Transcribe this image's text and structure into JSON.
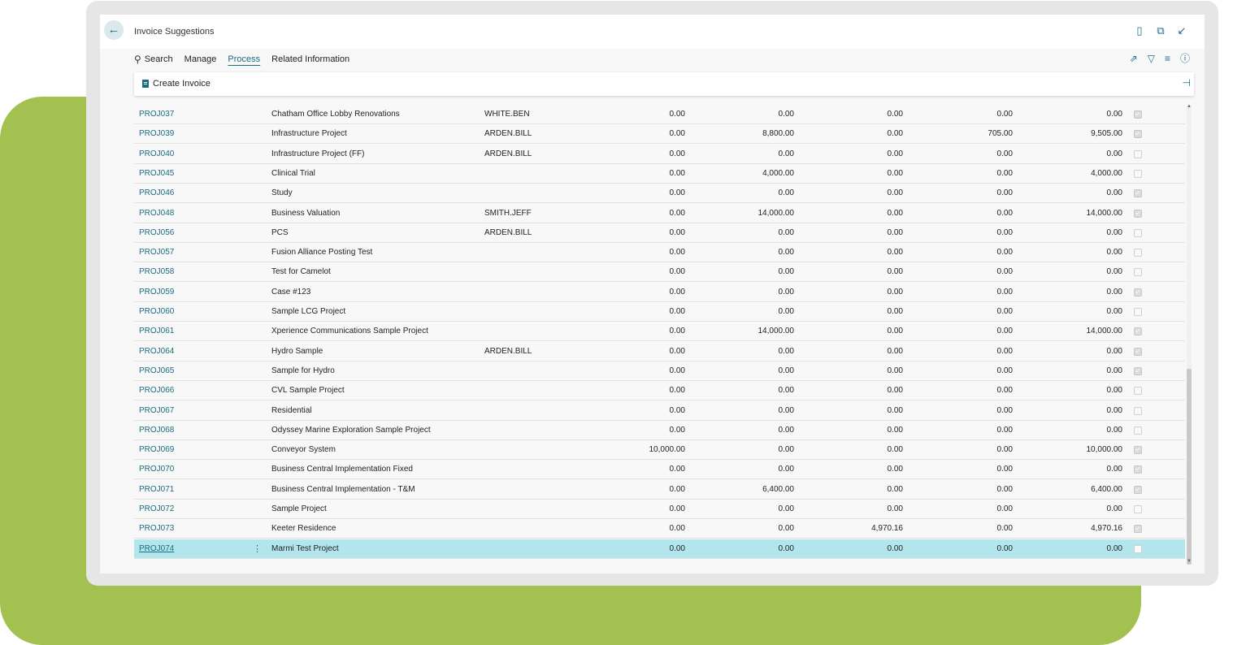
{
  "page": {
    "title": "Invoice Suggestions",
    "back_icon": "arrow-left-icon"
  },
  "header_icons": [
    "bookmark-icon",
    "open-in-new-window-icon",
    "collapse-icon"
  ],
  "actionbar": {
    "search": "Search",
    "manage": "Manage",
    "process": "Process",
    "related": "Related Information"
  },
  "toolbar_icons": [
    "share-icon",
    "filter-icon",
    "list-view-icon",
    "info-icon"
  ],
  "subbar": {
    "create_invoice": "Create Invoice"
  },
  "colors": {
    "accent": "#1b6c80",
    "selected_row": "#b3e6ec",
    "green_background": "#a3c150"
  },
  "rows": [
    {
      "no": "PROJ037",
      "desc": "Chatham Office Lobby Renovations",
      "mgr": "WHITE.BEN",
      "a": "0.00",
      "b": "0.00",
      "c": "0.00",
      "d": "0.00",
      "e": "0.00",
      "checked": true
    },
    {
      "no": "PROJ039",
      "desc": "Infrastructure Project",
      "mgr": "ARDEN.BILL",
      "a": "0.00",
      "b": "8,800.00",
      "c": "0.00",
      "d": "705.00",
      "e": "9,505.00",
      "checked": true
    },
    {
      "no": "PROJ040",
      "desc": "Infrastructure Project (FF)",
      "mgr": "ARDEN.BILL",
      "a": "0.00",
      "b": "0.00",
      "c": "0.00",
      "d": "0.00",
      "e": "0.00",
      "checked": false
    },
    {
      "no": "PROJ045",
      "desc": "Clinical Trial",
      "mgr": "",
      "a": "0.00",
      "b": "4,000.00",
      "c": "0.00",
      "d": "0.00",
      "e": "4,000.00",
      "checked": false
    },
    {
      "no": "PROJ046",
      "desc": "Study",
      "mgr": "",
      "a": "0.00",
      "b": "0.00",
      "c": "0.00",
      "d": "0.00",
      "e": "0.00",
      "checked": true
    },
    {
      "no": "PROJ048",
      "desc": "Business Valuation",
      "mgr": "SMITH.JEFF",
      "a": "0.00",
      "b": "14,000.00",
      "c": "0.00",
      "d": "0.00",
      "e": "14,000.00",
      "checked": true
    },
    {
      "no": "PROJ056",
      "desc": "PCS",
      "mgr": "ARDEN.BILL",
      "a": "0.00",
      "b": "0.00",
      "c": "0.00",
      "d": "0.00",
      "e": "0.00",
      "checked": false
    },
    {
      "no": "PROJ057",
      "desc": "Fusion Alliance Posting Test",
      "mgr": "",
      "a": "0.00",
      "b": "0.00",
      "c": "0.00",
      "d": "0.00",
      "e": "0.00",
      "checked": false
    },
    {
      "no": "PROJ058",
      "desc": "Test for Camelot",
      "mgr": "",
      "a": "0.00",
      "b": "0.00",
      "c": "0.00",
      "d": "0.00",
      "e": "0.00",
      "checked": false
    },
    {
      "no": "PROJ059",
      "desc": "Case #123",
      "mgr": "",
      "a": "0.00",
      "b": "0.00",
      "c": "0.00",
      "d": "0.00",
      "e": "0.00",
      "checked": true
    },
    {
      "no": "PROJ060",
      "desc": "Sample LCG Project",
      "mgr": "",
      "a": "0.00",
      "b": "0.00",
      "c": "0.00",
      "d": "0.00",
      "e": "0.00",
      "checked": false
    },
    {
      "no": "PROJ061",
      "desc": "Xperience Communications Sample Project",
      "mgr": "",
      "a": "0.00",
      "b": "14,000.00",
      "c": "0.00",
      "d": "0.00",
      "e": "14,000.00",
      "checked": true
    },
    {
      "no": "PROJ064",
      "desc": "Hydro Sample",
      "mgr": "ARDEN.BILL",
      "a": "0.00",
      "b": "0.00",
      "c": "0.00",
      "d": "0.00",
      "e": "0.00",
      "checked": true
    },
    {
      "no": "PROJ065",
      "desc": "Sample for Hydro",
      "mgr": "",
      "a": "0.00",
      "b": "0.00",
      "c": "0.00",
      "d": "0.00",
      "e": "0.00",
      "checked": true
    },
    {
      "no": "PROJ066",
      "desc": "CVL Sample Project",
      "mgr": "",
      "a": "0.00",
      "b": "0.00",
      "c": "0.00",
      "d": "0.00",
      "e": "0.00",
      "checked": false
    },
    {
      "no": "PROJ067",
      "desc": "Residential",
      "mgr": "",
      "a": "0.00",
      "b": "0.00",
      "c": "0.00",
      "d": "0.00",
      "e": "0.00",
      "checked": false
    },
    {
      "no": "PROJ068",
      "desc": "Odyssey Marine Exploration Sample Project",
      "mgr": "",
      "a": "0.00",
      "b": "0.00",
      "c": "0.00",
      "d": "0.00",
      "e": "0.00",
      "checked": false
    },
    {
      "no": "PROJ069",
      "desc": "Conveyor System",
      "mgr": "",
      "a": "10,000.00",
      "b": "0.00",
      "c": "0.00",
      "d": "0.00",
      "e": "10,000.00",
      "checked": true
    },
    {
      "no": "PROJ070",
      "desc": "Business Central Implementation Fixed",
      "mgr": "",
      "a": "0.00",
      "b": "0.00",
      "c": "0.00",
      "d": "0.00",
      "e": "0.00",
      "checked": true
    },
    {
      "no": "PROJ071",
      "desc": "Business Central Implementation - T&M",
      "mgr": "",
      "a": "0.00",
      "b": "6,400.00",
      "c": "0.00",
      "d": "0.00",
      "e": "6,400.00",
      "checked": true
    },
    {
      "no": "PROJ072",
      "desc": "Sample Project",
      "mgr": "",
      "a": "0.00",
      "b": "0.00",
      "c": "0.00",
      "d": "0.00",
      "e": "0.00",
      "checked": false
    },
    {
      "no": "PROJ073",
      "desc": "Keeter Residence",
      "mgr": "",
      "a": "0.00",
      "b": "0.00",
      "c": "4,970.16",
      "d": "0.00",
      "e": "4,970.16",
      "checked": true
    },
    {
      "no": "PROJ074",
      "desc": "Marmi Test Project",
      "mgr": "",
      "a": "0.00",
      "b": "0.00",
      "c": "0.00",
      "d": "0.00",
      "e": "0.00",
      "checked": false,
      "selected": true
    }
  ]
}
